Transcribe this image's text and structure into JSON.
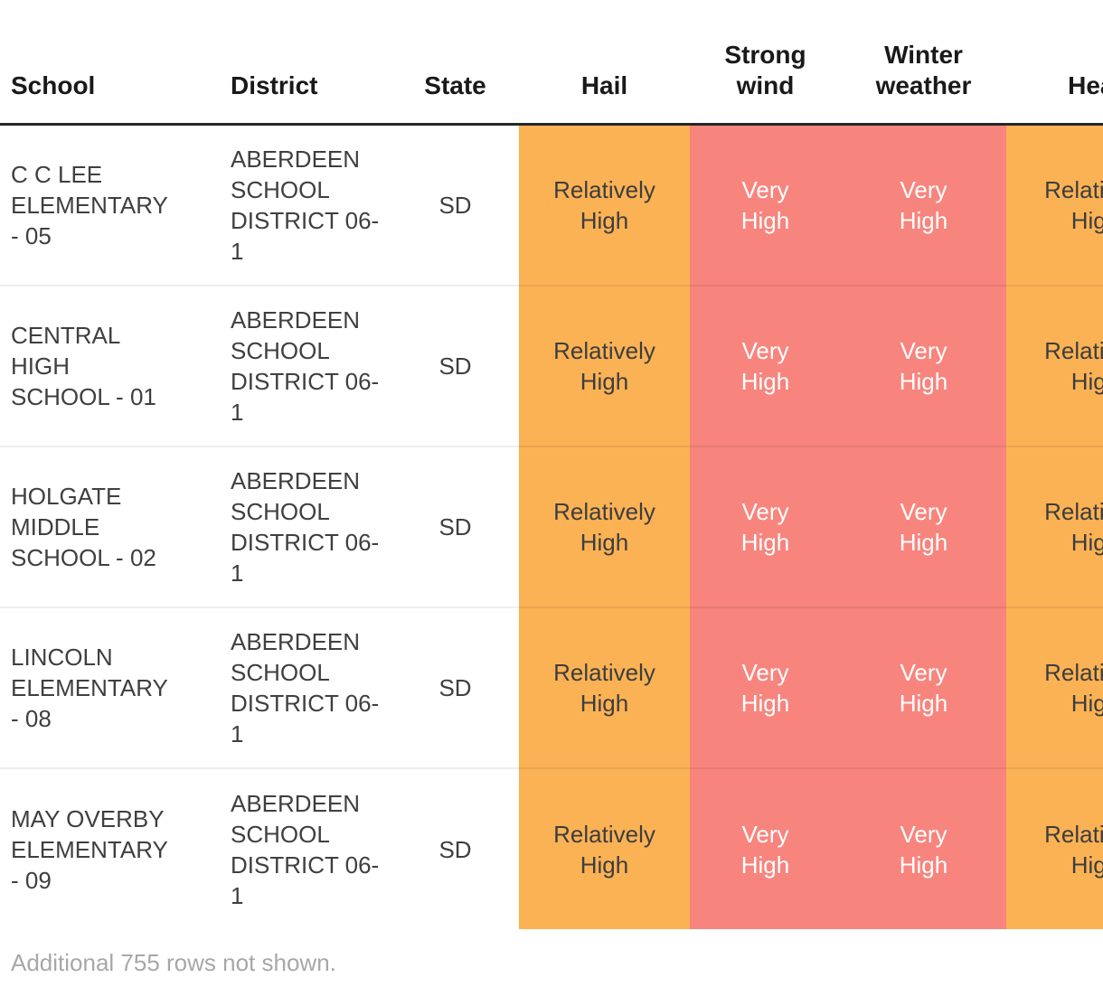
{
  "table": {
    "columns": [
      {
        "id": "school",
        "label": "School"
      },
      {
        "id": "district",
        "label": "District"
      },
      {
        "id": "state",
        "label": "State"
      },
      {
        "id": "hail",
        "label": "Hail"
      },
      {
        "id": "strong_wind",
        "label": "Strong wind"
      },
      {
        "id": "winter_weather",
        "label": "Winter weather"
      },
      {
        "id": "heat",
        "label": "Heat"
      }
    ],
    "rows": [
      {
        "school": "C C LEE ELEMENTARY - 05",
        "district": "ABERDEEN SCHOOL DISTRICT 06-1",
        "state": "SD",
        "hail": "Relatively High",
        "strong_wind": "Very High",
        "winter_weather": "Very High",
        "heat": "Relatively High"
      },
      {
        "school": "CENTRAL HIGH SCHOOL - 01",
        "district": "ABERDEEN SCHOOL DISTRICT 06-1",
        "state": "SD",
        "hail": "Relatively High",
        "strong_wind": "Very High",
        "winter_weather": "Very High",
        "heat": "Relatively High"
      },
      {
        "school": "HOLGATE MIDDLE SCHOOL - 02",
        "district": "ABERDEEN SCHOOL DISTRICT 06-1",
        "state": "SD",
        "hail": "Relatively High",
        "strong_wind": "Very High",
        "winter_weather": "Very High",
        "heat": "Relatively High"
      },
      {
        "school": "LINCOLN ELEMENTARY - 08",
        "district": "ABERDEEN SCHOOL DISTRICT 06-1",
        "state": "SD",
        "hail": "Relatively High",
        "strong_wind": "Very High",
        "winter_weather": "Very High",
        "heat": "Relatively High"
      },
      {
        "school": "MAY OVERBY ELEMENTARY - 09",
        "district": "ABERDEEN SCHOOL DISTRICT 06-1",
        "state": "SD",
        "hail": "Relatively High",
        "strong_wind": "Very High",
        "winter_weather": "Very High",
        "heat": "Relatively High"
      }
    ],
    "footer_note": "Additional 755 rows not shown."
  },
  "rating_levels": [
    {
      "label": "Relatively High",
      "bg": "#FBB255",
      "text": "#3D3D3D"
    },
    {
      "label": "Very High",
      "bg": "#F7857E",
      "text": "#FFFFFF"
    }
  ],
  "colors": {
    "relatively_high_bg": "#FBB255",
    "relatively_high_text": "#3D3D3D",
    "very_high_bg": "#F7857E",
    "very_high_text": "#FFFFFF",
    "header_text": "#191919",
    "header_border": "#262626",
    "body_text": "#3F3F3F",
    "footer_text": "#A7A7A7",
    "row_divider": "rgba(0,0,0,0.07)"
  }
}
